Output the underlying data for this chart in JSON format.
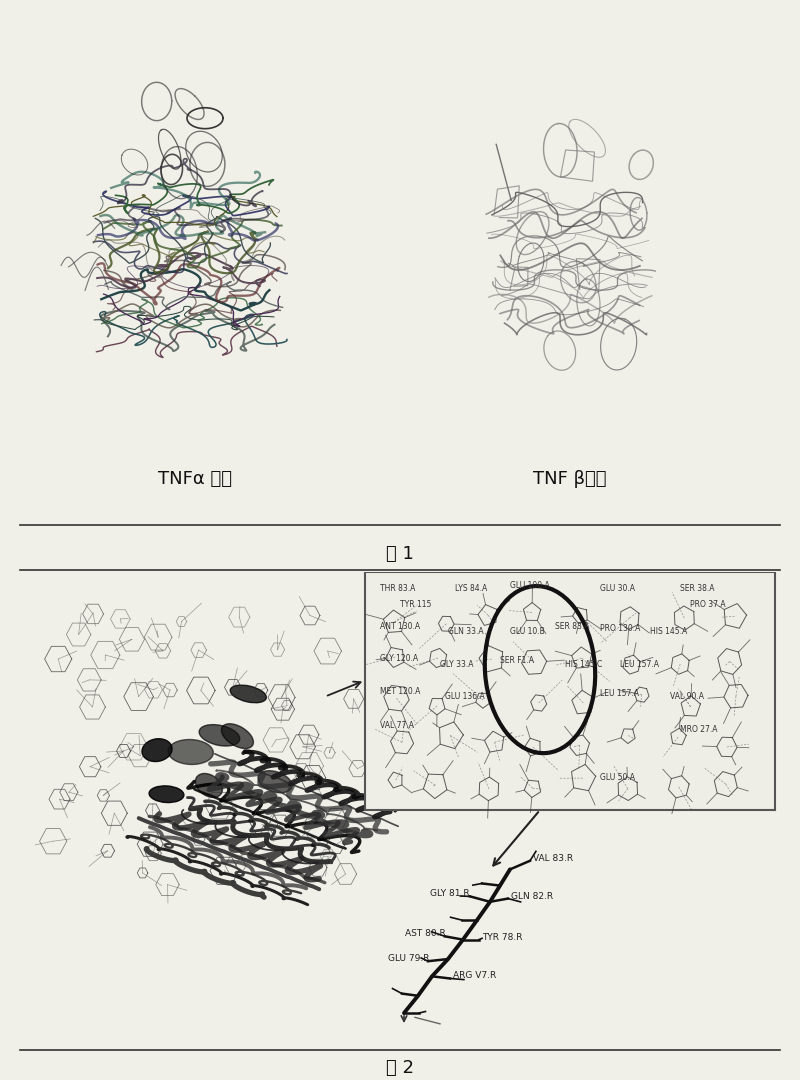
{
  "background_color": "#f0efe8",
  "panel1": {
    "label": "图 1",
    "tnf_alpha_label": "TNFα 分子",
    "tnf_beta_label": "TNF β分子"
  },
  "panel2": {
    "label": "图 2"
  },
  "divider_color": "#333333",
  "text_color": "#111111"
}
